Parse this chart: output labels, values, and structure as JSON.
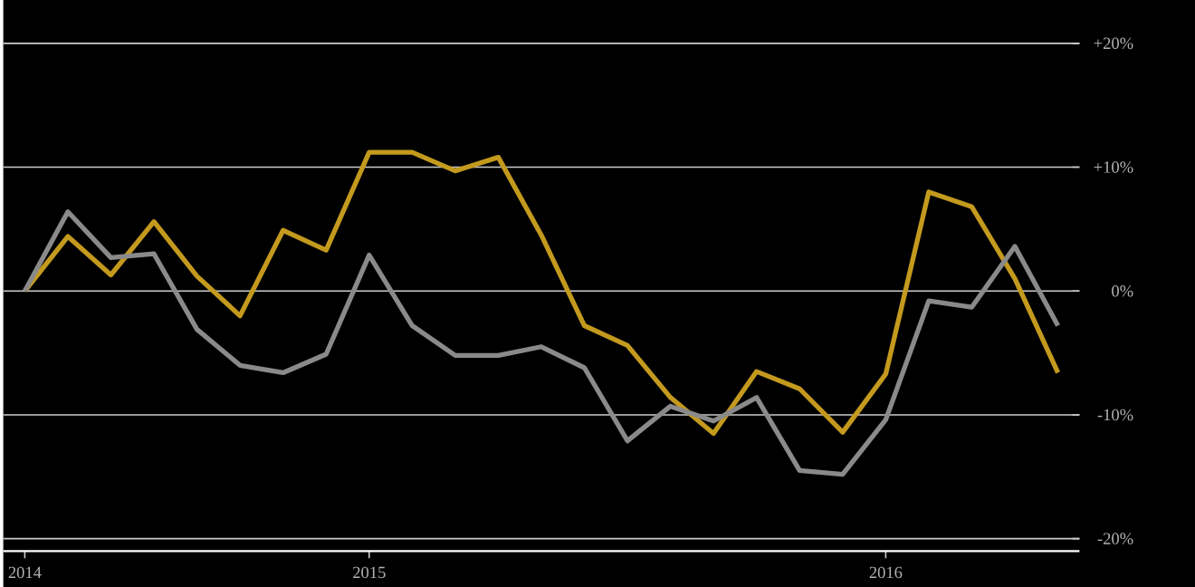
{
  "chart_data": {
    "type": "line",
    "categories": [
      "2014",
      null,
      null,
      null,
      null,
      null,
      null,
      null,
      "2015",
      null,
      null,
      null,
      null,
      null,
      null,
      null,
      null,
      null,
      null,
      null,
      "2016",
      null,
      null,
      null,
      null
    ],
    "series": [
      {
        "color": "#c49a1e",
        "values": [
          0,
          4.4,
          1.3,
          5.6,
          1.2,
          -2.0,
          4.9,
          3.3,
          11.2,
          11.2,
          9.7,
          10.8,
          4.5,
          -2.8,
          -4.4,
          -8.6,
          -11.5,
          -6.5,
          -7.9,
          -11.4,
          -6.7,
          8.0,
          6.8,
          1.0,
          -6.6
        ]
      },
      {
        "color": "#8a8a8a",
        "values": [
          0,
          6.4,
          2.7,
          3.0,
          -3.1,
          -6.0,
          -6.6,
          -5.1,
          2.9,
          -2.8,
          -5.2,
          -5.2,
          -4.5,
          -6.2,
          -12.1,
          -9.3,
          -10.5,
          -8.6,
          -14.5,
          -14.8,
          -10.4,
          -0.8,
          -1.3,
          3.6,
          -2.8
        ]
      }
    ],
    "ylim": [
      -21,
      23.5
    ],
    "yticks": [
      {
        "value": -20,
        "label": "-20%"
      },
      {
        "value": -10,
        "label": "-10%"
      },
      {
        "value": 0,
        "label": "0%"
      },
      {
        "value": 10,
        "label": "+10%"
      },
      {
        "value": 20,
        "label": "+20%"
      }
    ],
    "grid": "y",
    "marker": "none",
    "line_style": "solid"
  }
}
